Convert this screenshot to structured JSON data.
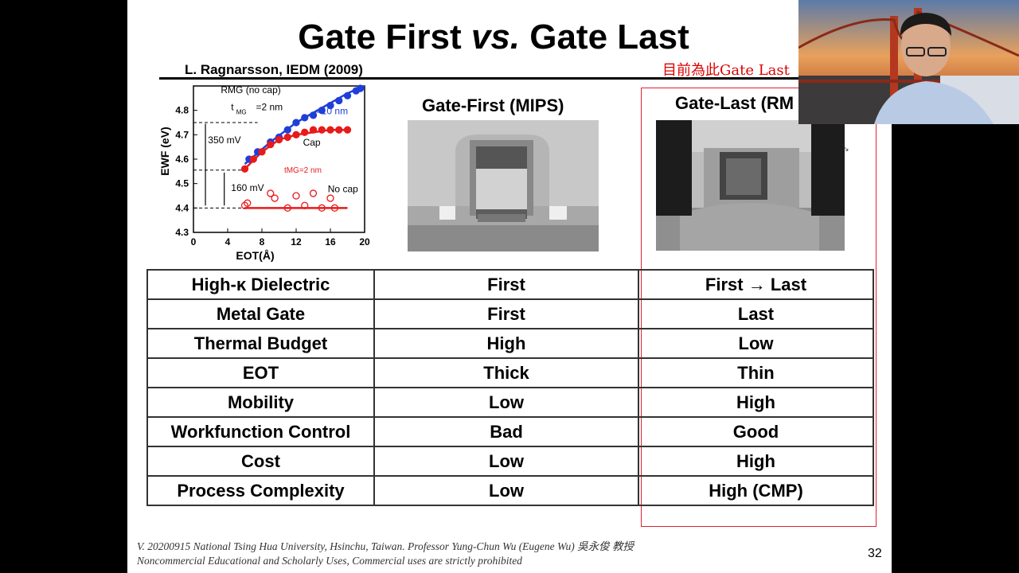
{
  "slide": {
    "title_part1": "Gate First ",
    "title_vs": "vs.",
    "title_part2": " Gate Last",
    "reference": "L. Ragnarsson, IEDM (2009)",
    "note": "目前為此Gate Last",
    "gate_first_label": "Gate-First (MIPS)",
    "gate_last_label": "Gate-Last (RM",
    "footer_line1": "V. 20200915 National Tsing Hua University, Hsinchu, Taiwan. Professor Yung-Chun Wu (Eugene Wu) 吳永俊 教授",
    "footer_line2": "Noncommercial Educational and Scholarly Uses, Commercial uses are strictly prohibited",
    "page_number": "32"
  },
  "table": {
    "rows": [
      {
        "label": "High-κ Dielectric",
        "first": "First",
        "last": "First → Last"
      },
      {
        "label": "Metal Gate",
        "first": "First",
        "last": "Last"
      },
      {
        "label": "Thermal Budget",
        "first": "High",
        "last": "Low"
      },
      {
        "label": "EOT",
        "first": "Thick",
        "last": "Thin"
      },
      {
        "label": "Mobility",
        "first": "Low",
        "last": "High"
      },
      {
        "label": "Workfunction Control",
        "first": "Bad",
        "last": "Good"
      },
      {
        "label": "Cost",
        "first": "Low",
        "last": "High"
      },
      {
        "label": "Process Complexity",
        "first": "Low",
        "last": "High (CMP)"
      }
    ]
  },
  "chart_data": {
    "type": "scatter",
    "xlabel": "EOT(Å)",
    "ylabel": "EWF (eV)",
    "xlim": [
      0,
      20
    ],
    "ylim": [
      4.3,
      4.9
    ],
    "xticks": [
      0,
      4,
      8,
      12,
      16,
      20
    ],
    "yticks": [
      4.3,
      4.4,
      4.5,
      4.6,
      4.7,
      4.8
    ],
    "grid": false,
    "annotations": [
      "RMG (no cap)",
      "t",
      "MG",
      "=2 nm",
      "=10 nm",
      "Cap",
      "350 mV",
      "160 mV",
      "No cap"
    ],
    "series": [
      {
        "name": "RMG (no cap) tMG=10 nm",
        "color": "#1f3fd8",
        "marker": "filled-circle",
        "x": [
          6.5,
          7.5,
          9,
          10,
          11,
          12,
          13,
          14,
          15,
          16,
          17,
          18,
          19,
          19.5
        ],
        "y": [
          4.6,
          4.63,
          4.67,
          4.69,
          4.72,
          4.75,
          4.77,
          4.78,
          4.8,
          4.82,
          4.84,
          4.86,
          4.88,
          4.89
        ]
      },
      {
        "name": "Cap tMG=2 nm",
        "color": "#e81a1a",
        "marker": "filled-circle",
        "x": [
          6,
          7,
          8,
          9,
          10,
          11,
          12,
          13,
          14,
          15,
          16,
          17,
          18
        ],
        "y": [
          4.56,
          4.6,
          4.63,
          4.66,
          4.68,
          4.69,
          4.7,
          4.71,
          4.72,
          4.72,
          4.72,
          4.72,
          4.72
        ]
      },
      {
        "name": "No cap",
        "color": "#e81a1a",
        "marker": "open-circle",
        "x": [
          6,
          6.3,
          9,
          9.5,
          11,
          12,
          13,
          14,
          15,
          16,
          16.5
        ],
        "y": [
          4.41,
          4.42,
          4.46,
          4.44,
          4.4,
          4.45,
          4.41,
          4.46,
          4.4,
          4.44,
          4.4
        ]
      }
    ],
    "fit_lines": [
      {
        "color": "#1f3fd8",
        "x": [
          6,
          9,
          12,
          15,
          18,
          20
        ],
        "y": [
          4.58,
          4.67,
          4.75,
          4.81,
          4.87,
          4.9
        ]
      },
      {
        "color": "#e81a1a",
        "x": [
          6,
          8,
          10,
          12,
          14,
          16,
          18
        ],
        "y": [
          4.56,
          4.63,
          4.68,
          4.7,
          4.71,
          4.72,
          4.72
        ]
      },
      {
        "color": "#e81a1a",
        "x": [
          6,
          18
        ],
        "y": [
          4.4,
          4.4
        ]
      }
    ]
  }
}
